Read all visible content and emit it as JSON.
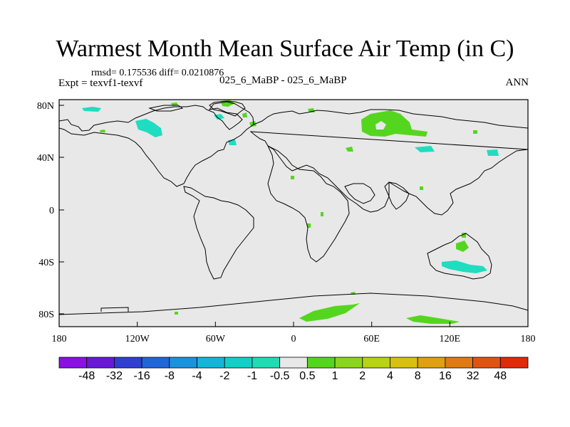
{
  "title": "Warmest Month Mean Surface Air Temp (in C)",
  "stats": "rmsd= 0.175536 diff= 0.0210876",
  "experiment": "Expt = texvf1-texvf",
  "case_label": "025_6_MaBP - 025_6_MaBP",
  "season": "ANN",
  "x_ticks": [
    "180",
    "120W",
    "60W",
    "0",
    "60E",
    "120E",
    "180"
  ],
  "y_ticks": [
    "80N",
    "40N",
    "0",
    "40S",
    "80S"
  ],
  "colorbar": {
    "labels": [
      "-48",
      "-32",
      "-16",
      "-8",
      "-4",
      "-2",
      "-1",
      "-0.5",
      "0.5",
      "1",
      "2",
      "4",
      "8",
      "16",
      "32",
      "48"
    ],
    "colors": [
      "#8a10e6",
      "#6a18d8",
      "#2f3fd2",
      "#1f66d8",
      "#1a93dd",
      "#14b6d8",
      "#12cfc8",
      "#20dcb4",
      "#e8e8e8",
      "#55d61e",
      "#8ad61c",
      "#b8d214",
      "#d8c010",
      "#e0a010",
      "#e07a12",
      "#e05412",
      "#e02a0a"
    ]
  },
  "map": {
    "background_color": "#e8e8e8",
    "coast_color": "#000000",
    "positive_color": "#55d61e",
    "negative_color": "#20dcc0"
  }
}
